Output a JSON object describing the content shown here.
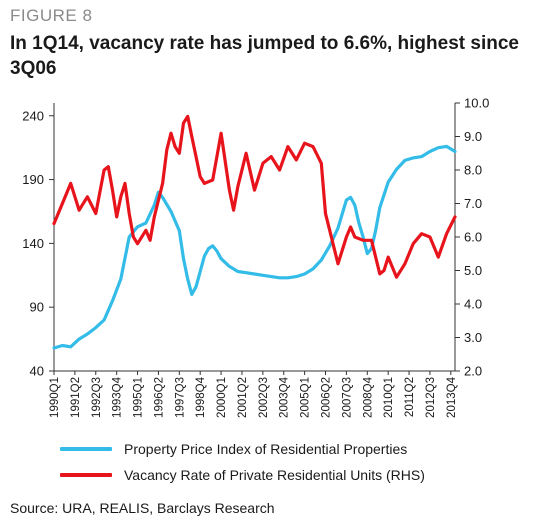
{
  "figure_label": "FIGURE 8",
  "title": "In 1Q14, vacancy rate has jumped to 6.6%, highest since 3Q06",
  "source": "Source: URA, REALIS, Barclays Research",
  "colors": {
    "series_0": "#33bce8",
    "series_1": "#e8141c",
    "axis": "#333333"
  },
  "chart_data": {
    "type": "line",
    "y_left": {
      "ticks": [
        "40",
        "90",
        "140",
        "190",
        "240"
      ],
      "lim": [
        40,
        250
      ]
    },
    "y_right": {
      "ticks": [
        "2.0",
        "3.0",
        "4.0",
        "5.0",
        "6.0",
        "7.0",
        "8.0",
        "9.0",
        "10.0"
      ],
      "lim": [
        2.0,
        10.0
      ]
    },
    "x_tick_labels": [
      "1990Q1",
      "1991Q2",
      "1992Q3",
      "1993Q4",
      "1995Q1",
      "1996Q2",
      "1997Q3",
      "1998Q4",
      "2000Q1",
      "2001Q2",
      "2002Q3",
      "2003Q4",
      "2005Q1",
      "2006Q2",
      "2007Q3",
      "2008Q4",
      "2010Q1",
      "2011Q2",
      "2012Q3",
      "2013Q4"
    ],
    "x_range": [
      "1990Q1",
      "2014Q1"
    ],
    "series": [
      {
        "name": "Property Price Index of Residential Properties",
        "axis": "left",
        "x": [
          1990.0,
          1990.5,
          1991.0,
          1991.5,
          1992.0,
          1992.5,
          1993.0,
          1993.5,
          1994.0,
          1994.5,
          1995.0,
          1995.5,
          1996.0,
          1996.25,
          1996.5,
          1997.0,
          1997.5,
          1997.75,
          1998.0,
          1998.25,
          1998.5,
          1998.75,
          1999.0,
          1999.25,
          1999.5,
          1999.75,
          2000.0,
          2000.5,
          2001.0,
          2001.5,
          2002.0,
          2002.5,
          2003.0,
          2003.5,
          2004.0,
          2004.5,
          2005.0,
          2005.5,
          2006.0,
          2006.5,
          2007.0,
          2007.25,
          2007.5,
          2007.75,
          2008.0,
          2008.25,
          2008.5,
          2008.75,
          2009.0,
          2009.25,
          2009.5,
          2009.75,
          2010.0,
          2010.5,
          2011.0,
          2011.5,
          2012.0,
          2012.5,
          2013.0,
          2013.5,
          2014.0
        ],
        "values": [
          58,
          60,
          59,
          65,
          69,
          74,
          80,
          95,
          112,
          145,
          153,
          156,
          170,
          180,
          176,
          165,
          150,
          128,
          112,
          100,
          106,
          118,
          130,
          136,
          138,
          134,
          128,
          122,
          118,
          117,
          116,
          115,
          114,
          113,
          113,
          114,
          116,
          120,
          127,
          138,
          152,
          163,
          174,
          176,
          170,
          156,
          145,
          132,
          136,
          150,
          168,
          178,
          188,
          198,
          205,
          207,
          208,
          212,
          215,
          216,
          212
        ]
      },
      {
        "name": "Vacancy Rate of Private Residential Units (RHS)",
        "axis": "right",
        "x": [
          1990.0,
          1990.5,
          1991.0,
          1991.5,
          1992.0,
          1992.5,
          1993.0,
          1993.25,
          1993.5,
          1993.75,
          1994.0,
          1994.25,
          1994.5,
          1994.75,
          1995.0,
          1995.5,
          1995.75,
          1996.0,
          1996.5,
          1996.75,
          1997.0,
          1997.25,
          1997.5,
          1997.75,
          1998.0,
          1998.25,
          1998.5,
          1998.75,
          1999.0,
          1999.5,
          2000.0,
          2000.5,
          2000.75,
          2001.0,
          2001.5,
          2002.0,
          2002.5,
          2003.0,
          2003.5,
          2004.0,
          2004.5,
          2005.0,
          2005.5,
          2006.0,
          2006.25,
          2006.5,
          2007.0,
          2007.25,
          2007.5,
          2007.75,
          2008.0,
          2008.5,
          2009.0,
          2009.5,
          2009.75,
          2010.0,
          2010.5,
          2011.0,
          2011.5,
          2012.0,
          2012.5,
          2013.0,
          2013.5,
          2014.0
        ],
        "values": [
          6.4,
          7.0,
          7.6,
          6.8,
          7.2,
          6.7,
          8.0,
          8.1,
          7.4,
          6.6,
          7.2,
          7.6,
          6.7,
          6.0,
          5.8,
          6.2,
          5.9,
          6.6,
          7.6,
          8.6,
          9.1,
          8.7,
          8.5,
          9.4,
          9.6,
          9.0,
          8.4,
          7.8,
          7.6,
          7.7,
          9.1,
          7.4,
          6.8,
          7.5,
          8.5,
          7.4,
          8.2,
          8.4,
          8.0,
          8.7,
          8.3,
          8.8,
          8.7,
          8.2,
          6.7,
          6.2,
          5.2,
          5.6,
          6.0,
          6.3,
          6.0,
          5.9,
          5.9,
          4.9,
          5.0,
          5.4,
          4.8,
          5.2,
          5.8,
          6.1,
          6.0,
          5.4,
          6.1,
          6.6
        ]
      }
    ]
  },
  "legend": [
    {
      "label": "Property Price Index of Residential Properties"
    },
    {
      "label": "Vacancy Rate of Private Residential Units (RHS)"
    }
  ]
}
